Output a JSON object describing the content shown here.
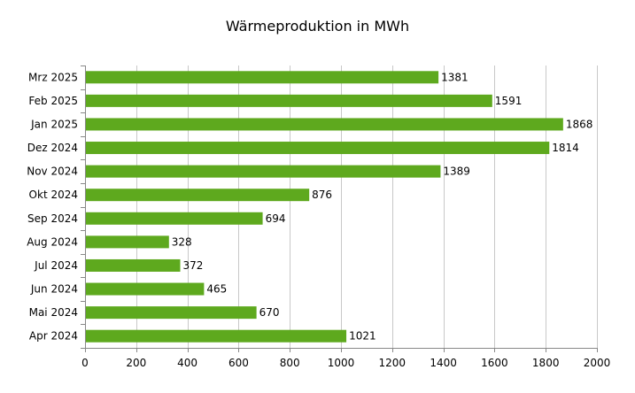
{
  "chart_data": {
    "type": "bar",
    "orientation": "horizontal",
    "title": "Wärmeproduktion in MWh",
    "xlabel": "",
    "ylabel": "",
    "categories": [
      "Mrz 2025",
      "Feb 2025",
      "Jan 2025",
      "Dez 2024",
      "Nov 2024",
      "Okt 2024",
      "Sep 2024",
      "Aug 2024",
      "Jul 2024",
      "Jun 2024",
      "Mai 2024",
      "Apr 2024"
    ],
    "values": [
      1381,
      1591,
      1868,
      1814,
      1389,
      876,
      694,
      328,
      372,
      465,
      670,
      1021
    ],
    "xlim": [
      0,
      2000
    ],
    "xticks": [
      0,
      200,
      400,
      600,
      800,
      1000,
      1200,
      1400,
      1600,
      1800,
      2000
    ],
    "grid": "vertical",
    "legend": "none",
    "data_labels": true,
    "colors": {
      "bar": "#5ea91e",
      "grid": "#c8c8c8",
      "axis": "#888888"
    }
  }
}
